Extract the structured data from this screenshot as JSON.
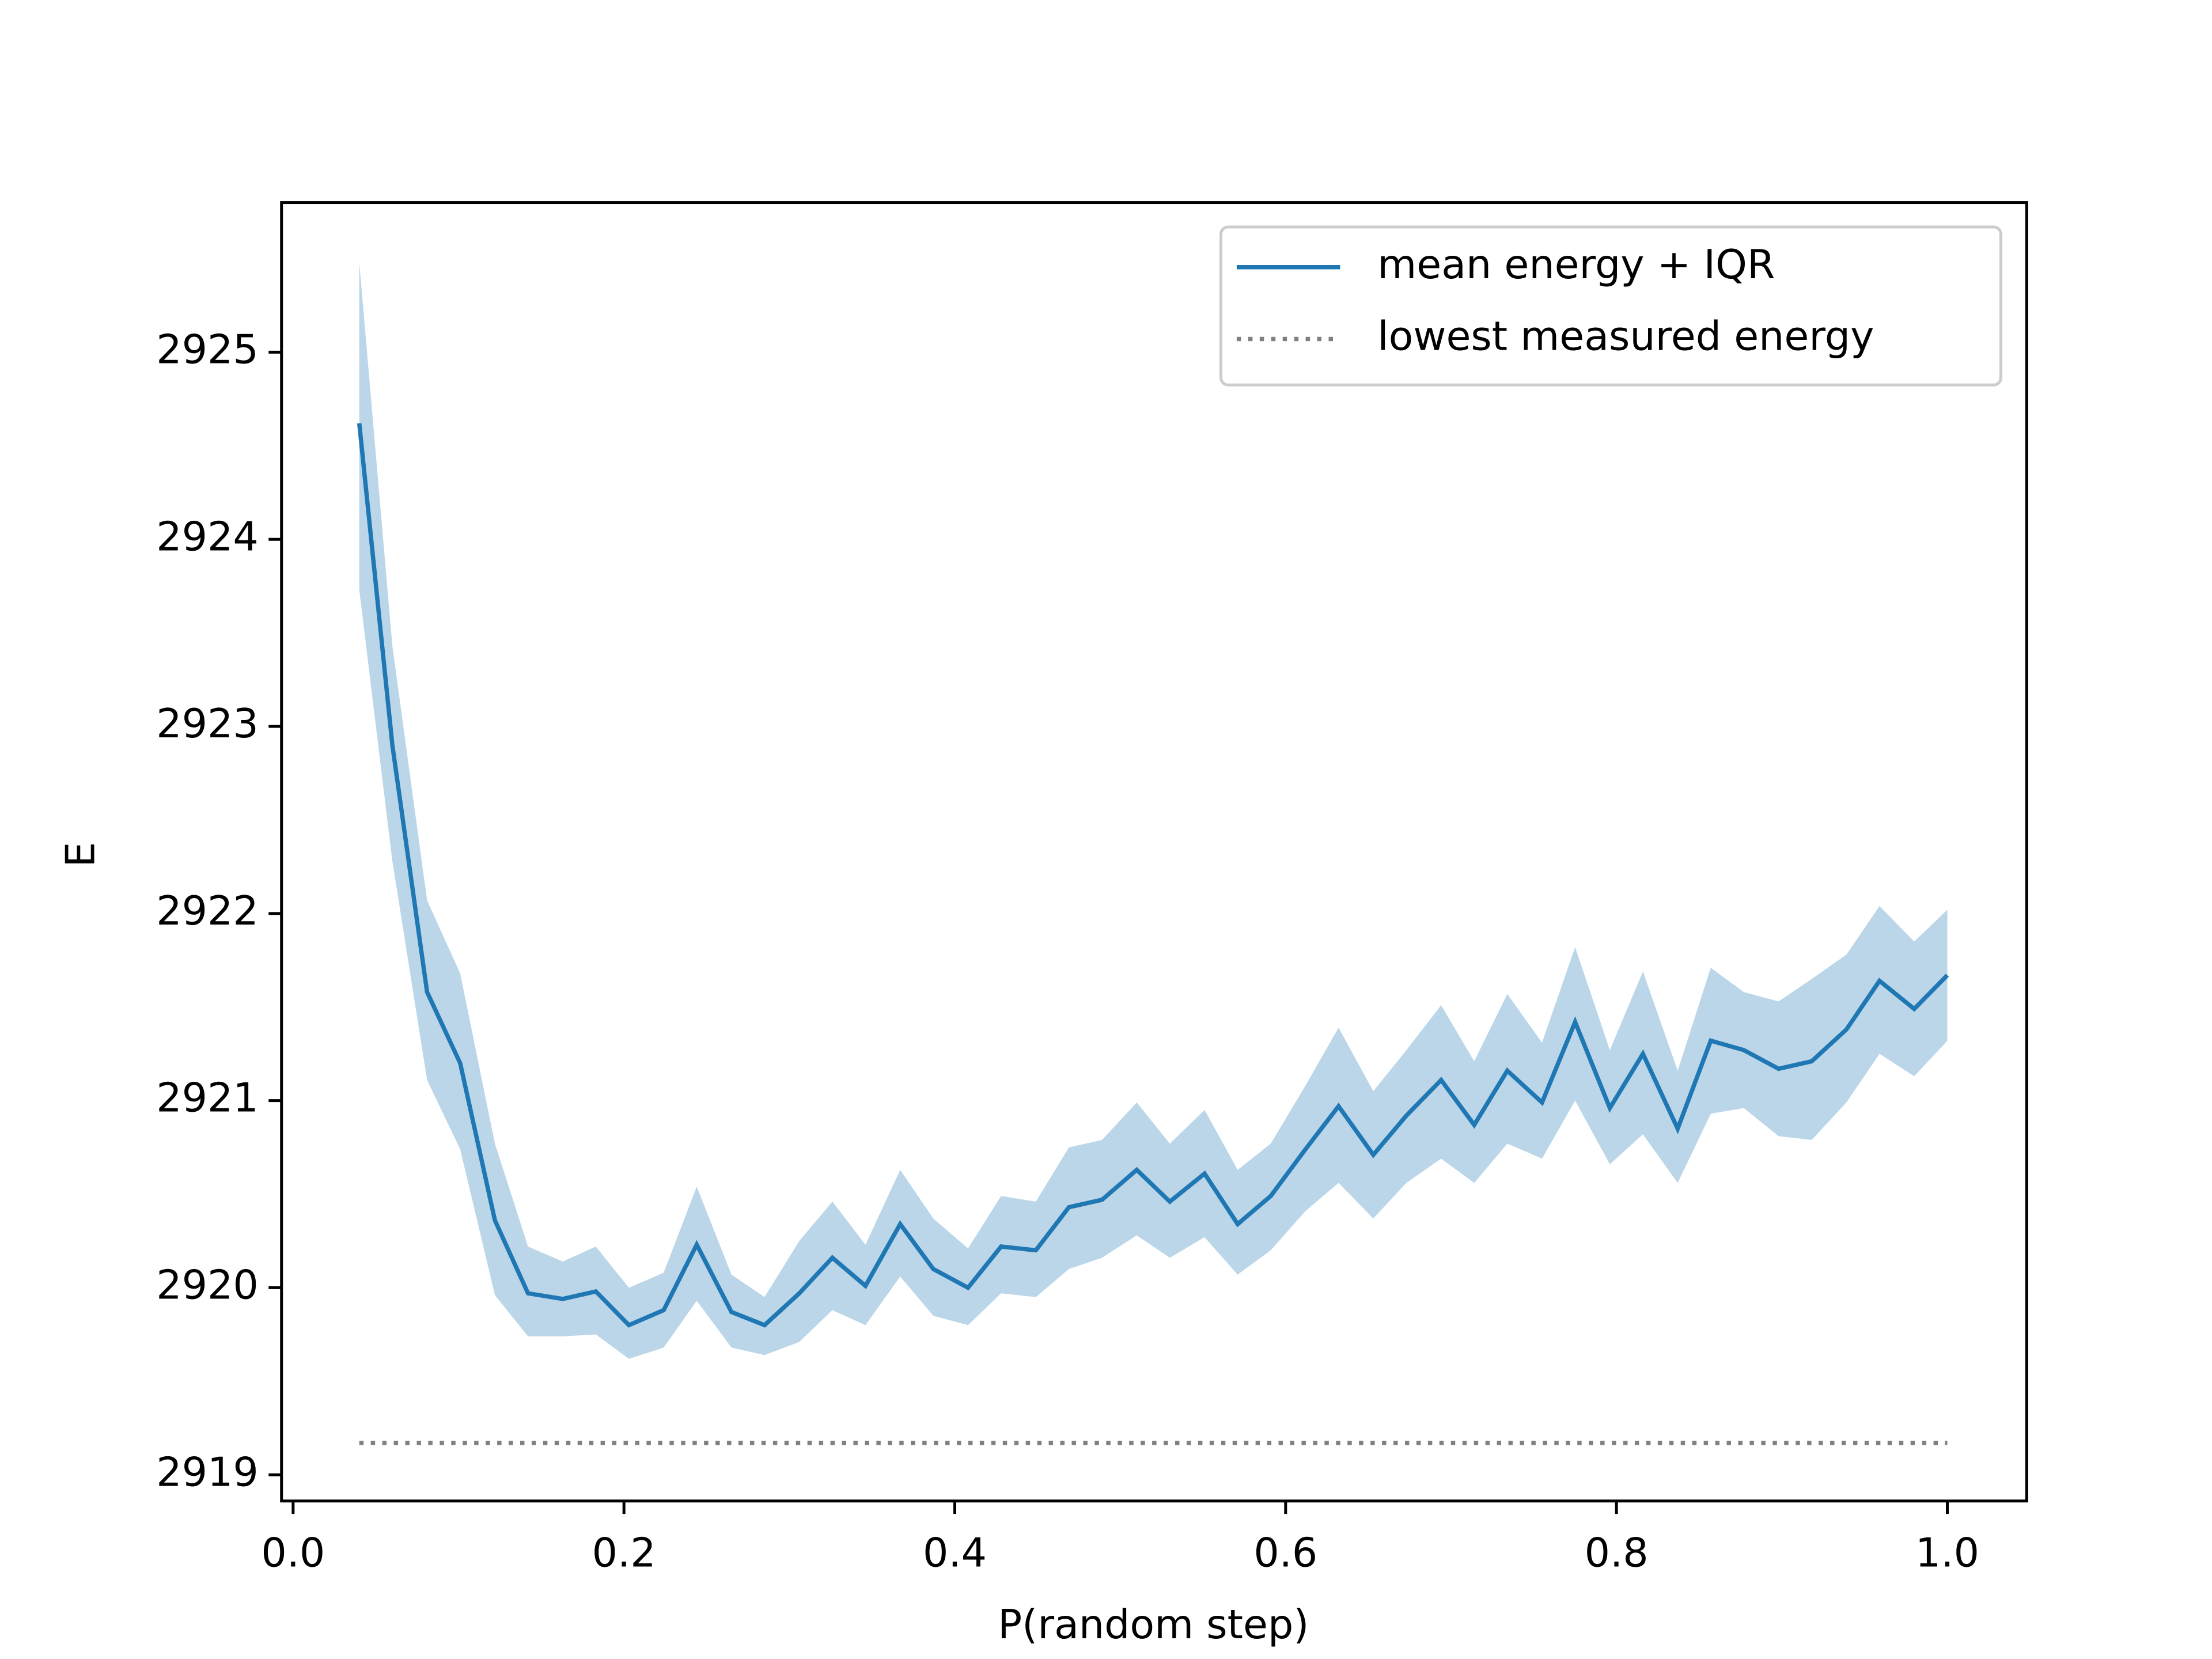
{
  "chart_data": {
    "type": "line",
    "xlabel": "P(random step)",
    "ylabel": "E",
    "x": [
      0.04,
      0.06,
      0.081,
      0.101,
      0.122,
      0.142,
      0.163,
      0.183,
      0.203,
      0.224,
      0.244,
      0.265,
      0.285,
      0.306,
      0.326,
      0.346,
      0.367,
      0.387,
      0.408,
      0.428,
      0.449,
      0.469,
      0.489,
      0.51,
      0.53,
      0.551,
      0.571,
      0.591,
      0.612,
      0.632,
      0.653,
      0.673,
      0.694,
      0.714,
      0.734,
      0.755,
      0.775,
      0.796,
      0.816,
      0.837,
      0.857,
      0.877,
      0.898,
      0.918,
      0.939,
      0.959,
      0.98,
      1.0
    ],
    "series": [
      {
        "name": "mean energy + IQR",
        "color": "#1f77b4",
        "values": [
          2924.62,
          2922.9,
          2921.58,
          2921.2,
          2920.36,
          2919.97,
          2919.94,
          2919.98,
          2919.8,
          2919.88,
          2920.23,
          2919.87,
          2919.8,
          2919.97,
          2920.16,
          2920.01,
          2920.34,
          2920.1,
          2920.0,
          2920.22,
          2920.2,
          2920.43,
          2920.47,
          2920.63,
          2920.46,
          2920.61,
          2920.34,
          2920.49,
          2920.74,
          2920.97,
          2920.71,
          2920.92,
          2921.11,
          2920.87,
          2921.16,
          2920.99,
          2921.42,
          2920.96,
          2921.25,
          2920.85,
          2921.32,
          2921.27,
          2921.17,
          2921.21,
          2921.38,
          2921.64,
          2921.49,
          2921.67
        ],
        "iqr_high": [
          2925.48,
          2923.43,
          2922.07,
          2921.68,
          2920.77,
          2920.22,
          2920.14,
          2920.22,
          2920.0,
          2920.08,
          2920.54,
          2920.07,
          2919.95,
          2920.25,
          2920.46,
          2920.23,
          2920.63,
          2920.37,
          2920.21,
          2920.49,
          2920.46,
          2920.75,
          2920.79,
          2920.99,
          2920.77,
          2920.95,
          2920.63,
          2920.77,
          2921.08,
          2921.39,
          2921.05,
          2921.27,
          2921.51,
          2921.21,
          2921.57,
          2921.31,
          2921.82,
          2921.27,
          2921.69,
          2921.16,
          2921.71,
          2921.58,
          2921.53,
          2921.65,
          2921.78,
          2922.04,
          2921.85,
          2922.02
        ],
        "iqr_low": [
          2923.73,
          2922.28,
          2921.11,
          2920.74,
          2919.96,
          2919.74,
          2919.74,
          2919.75,
          2919.62,
          2919.68,
          2919.93,
          2919.68,
          2919.64,
          2919.71,
          2919.88,
          2919.8,
          2920.06,
          2919.85,
          2919.8,
          2919.97,
          2919.95,
          2920.1,
          2920.16,
          2920.28,
          2920.16,
          2920.27,
          2920.07,
          2920.2,
          2920.41,
          2920.56,
          2920.37,
          2920.56,
          2920.69,
          2920.56,
          2920.77,
          2920.69,
          2921.0,
          2920.66,
          2920.82,
          2920.56,
          2920.93,
          2920.96,
          2920.81,
          2920.79,
          2920.99,
          2921.25,
          2921.13,
          2921.32
        ]
      },
      {
        "name": "lowest measured energy",
        "color": "#808080",
        "style": "dotted",
        "values": [
          2919.17,
          2919.17
        ],
        "x": [
          0.04,
          1.0
        ]
      }
    ],
    "xlim": [
      -0.007,
      1.048
    ],
    "ylim": [
      2918.86,
      2925.8
    ],
    "xticks": [
      {
        "value": 0,
        "label": "0.0"
      },
      {
        "value": 0.2,
        "label": "0.2"
      },
      {
        "value": 0.4,
        "label": "0.4"
      },
      {
        "value": 0.6,
        "label": "0.6"
      },
      {
        "value": 0.8,
        "label": "0.8"
      },
      {
        "value": 1,
        "label": "1.0"
      }
    ],
    "yticks": [
      2919,
      2920,
      2921,
      2922,
      2923,
      2924,
      2925
    ],
    "grid": false,
    "legend": "upper right"
  }
}
